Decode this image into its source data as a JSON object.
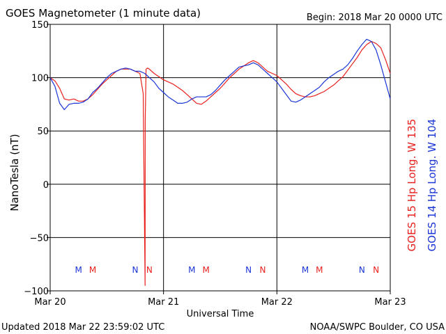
{
  "header": {
    "title": "GOES Magnetometer (1 minute data)",
    "begin": "Begin:  2018 Mar 20 0000 UTC"
  },
  "footer": {
    "updated": "Updated 2018 Mar 22 23:59:02 UTC",
    "credit": "NOAA/SWPC Boulder, CO USA"
  },
  "colors": {
    "goes15": "#e8211e",
    "goes14": "#1a35d6"
  },
  "chart_data": {
    "type": "line",
    "title": "GOES Magnetometer (1 minute data)",
    "xlabel": "Universal Time",
    "ylabel": "NanoTesla (nT)",
    "xlim": [
      0,
      72
    ],
    "ylim": [
      -100,
      150
    ],
    "grid": true,
    "yticks": [
      150,
      100,
      50,
      0,
      -50,
      -100
    ],
    "yticklabels": [
      "150",
      "100",
      "50",
      "0",
      "−50",
      "−100"
    ],
    "xticks": [
      0,
      24,
      48,
      72
    ],
    "xticklabels": [
      "Mar 20",
      "Mar 21",
      "Mar 22",
      "Mar 23"
    ],
    "legend_position": "right (vertical)",
    "series": [
      {
        "name": "GOES 15 Hp  Long. W 135",
        "color": "#e8211e",
        "x": [
          0,
          1,
          2,
          3,
          4,
          5,
          6,
          7,
          8,
          9,
          10,
          11,
          12,
          13,
          14,
          15,
          16,
          17,
          18,
          19,
          19.7,
          20.1,
          20.12,
          20.3,
          20.6,
          21,
          22,
          23,
          24,
          25,
          26,
          27,
          28,
          29,
          30,
          31,
          32,
          33,
          34,
          35,
          36,
          37,
          38,
          39,
          40,
          41,
          42,
          43,
          44,
          45,
          46,
          47,
          48,
          49,
          50,
          51,
          52,
          53,
          54,
          55,
          56,
          57,
          58,
          59,
          60,
          61,
          62,
          63,
          64,
          65,
          66,
          67,
          68,
          69,
          70,
          71,
          72
        ],
        "y": [
          100,
          97,
          90,
          80,
          79,
          80,
          78,
          78,
          80,
          84,
          89,
          94,
          98,
          102,
          106,
          108,
          108,
          108,
          106,
          104,
          85,
          -95,
          60,
          108,
          109,
          108,
          104,
          101,
          98,
          96,
          94,
          91,
          88,
          84,
          80,
          76,
          75,
          78,
          82,
          86,
          90,
          95,
          100,
          104,
          108,
          111,
          114,
          116,
          114,
          110,
          106,
          104,
          102,
          98,
          94,
          89,
          85,
          83,
          82,
          82,
          83,
          85,
          87,
          90,
          93,
          97,
          101,
          107,
          113,
          119,
          126,
          131,
          134,
          132,
          128,
          117,
          104
        ]
      },
      {
        "name": "GOES 14 Hp  Long. W 104",
        "color": "#1a35d6",
        "x": [
          0,
          1,
          2,
          3,
          4,
          5,
          6,
          7,
          8,
          9,
          10,
          11,
          12,
          13,
          14,
          15,
          16,
          17,
          18,
          19,
          20,
          21,
          22,
          23,
          24,
          25,
          26,
          27,
          28,
          29,
          30,
          31,
          32,
          33,
          34,
          35,
          36,
          37,
          38,
          39,
          40,
          41,
          42,
          43,
          44,
          45,
          46,
          47,
          48,
          49,
          50,
          51,
          52,
          53,
          54,
          55,
          56,
          57,
          58,
          59,
          60,
          61,
          62,
          63,
          64,
          65,
          66,
          67,
          68,
          69,
          70,
          71,
          72
        ],
        "y": [
          100,
          92,
          76,
          70,
          75,
          76,
          76,
          77,
          80,
          86,
          90,
          95,
          100,
          104,
          106,
          108,
          109,
          108,
          106,
          106,
          104,
          100,
          96,
          90,
          86,
          82,
          79,
          76,
          76,
          77,
          80,
          82,
          82,
          82,
          84,
          88,
          93,
          98,
          102,
          106,
          110,
          111,
          112,
          114,
          112,
          108,
          104,
          100,
          96,
          90,
          84,
          78,
          77,
          79,
          82,
          85,
          88,
          91,
          96,
          100,
          103,
          106,
          108,
          112,
          118,
          125,
          131,
          136,
          134,
          126,
          112,
          96,
          80
        ]
      }
    ],
    "annotations": {
      "goes14_markers": [
        {
          "x": 6,
          "label": "M"
        },
        {
          "x": 18,
          "label": "N"
        },
        {
          "x": 30,
          "label": "M"
        },
        {
          "x": 42,
          "label": "N"
        },
        {
          "x": 54,
          "label": "M"
        },
        {
          "x": 66,
          "label": "N"
        }
      ],
      "goes15_markers": [
        {
          "x": 9,
          "label": "M"
        },
        {
          "x": 21,
          "label": "N"
        },
        {
          "x": 33,
          "label": "M"
        },
        {
          "x": 45,
          "label": "N"
        },
        {
          "x": 57,
          "label": "M"
        },
        {
          "x": 69,
          "label": "N"
        }
      ]
    }
  }
}
